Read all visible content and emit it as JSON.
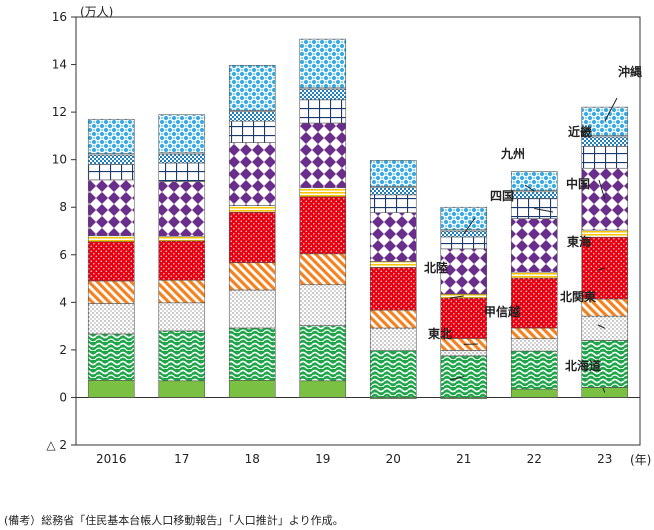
{
  "chart_data": {
    "type": "bar",
    "stacked": true,
    "unit": "(万人)",
    "x_unit": "(年)",
    "ylim": [
      -2,
      16
    ],
    "yticks": [
      16,
      14,
      12,
      10,
      8,
      6,
      4,
      2,
      0,
      -2
    ],
    "ytick_labels": [
      "16",
      "14",
      "12",
      "10",
      "8",
      "6",
      "4",
      "2",
      "0",
      "△ 2"
    ],
    "categories": [
      "2016",
      "17",
      "18",
      "19",
      "20",
      "21",
      "22",
      "23"
    ],
    "series": [
      {
        "name": "北海道",
        "color": "#7ac143",
        "pattern": "solid",
        "values": [
          0.72,
          0.7,
          0.72,
          0.7,
          -0.05,
          -0.05,
          0.35,
          0.42
        ]
      },
      {
        "name": "東北",
        "color": "#1fa64a",
        "pattern": "waves",
        "values": [
          1.95,
          2.1,
          2.2,
          2.32,
          1.97,
          1.75,
          1.6,
          1.98
        ]
      },
      {
        "name": "北関東",
        "color": "#c8c8c8",
        "pattern": "dots",
        "values": [
          1.28,
          1.18,
          1.6,
          1.72,
          0.95,
          0.23,
          0.52,
          1.02
        ]
      },
      {
        "name": "甲信越",
        "color": "#f58220",
        "pattern": "diagonal",
        "values": [
          0.95,
          0.95,
          1.15,
          1.3,
          0.75,
          0.5,
          0.45,
          0.72
        ]
      },
      {
        "name": "東海",
        "color": "#e60012",
        "pattern": "dots-red",
        "values": [
          1.65,
          1.65,
          2.12,
          2.4,
          1.8,
          1.7,
          2.1,
          2.6
        ]
      },
      {
        "name": "北陸",
        "color": "#f7c600",
        "pattern": "stripes",
        "values": [
          0.25,
          0.2,
          0.28,
          0.38,
          0.25,
          0.17,
          0.25,
          0.3
        ]
      },
      {
        "name": "近畿",
        "color": "#6b2d8b",
        "pattern": "diamonds",
        "values": [
          2.35,
          2.3,
          2.65,
          2.72,
          2.05,
          1.9,
          2.25,
          2.6
        ]
      },
      {
        "name": "中国",
        "color": "#ffffff",
        "pattern": "grid",
        "values": [
          0.65,
          0.78,
          0.9,
          0.98,
          0.75,
          0.5,
          0.85,
          0.92
        ]
      },
      {
        "name": "四国",
        "color": "#1d7fc1",
        "pattern": "checker",
        "values": [
          0.4,
          0.38,
          0.4,
          0.45,
          0.3,
          0.25,
          0.28,
          0.4
        ]
      },
      {
        "name": "九州",
        "color": "#ffffff",
        "pattern": "solid",
        "values": [
          0.05,
          0.05,
          0.05,
          0.05,
          0.05,
          0.05,
          0.05,
          0.05
        ]
      },
      {
        "name": "沖縄",
        "color": "#35a8e0",
        "pattern": "circles",
        "values": [
          1.45,
          1.6,
          1.9,
          2.05,
          1.1,
          0.95,
          0.8,
          1.2
        ]
      }
    ],
    "region_labels": [
      "北海道",
      "東北",
      "北関東",
      "甲信越",
      "東海",
      "北陸",
      "近畿",
      "中国",
      "四国",
      "九州",
      "沖縄"
    ]
  },
  "source_note": "(備考）総務省「住民基本台帳人口移動報告」「人口推計」より作成。"
}
